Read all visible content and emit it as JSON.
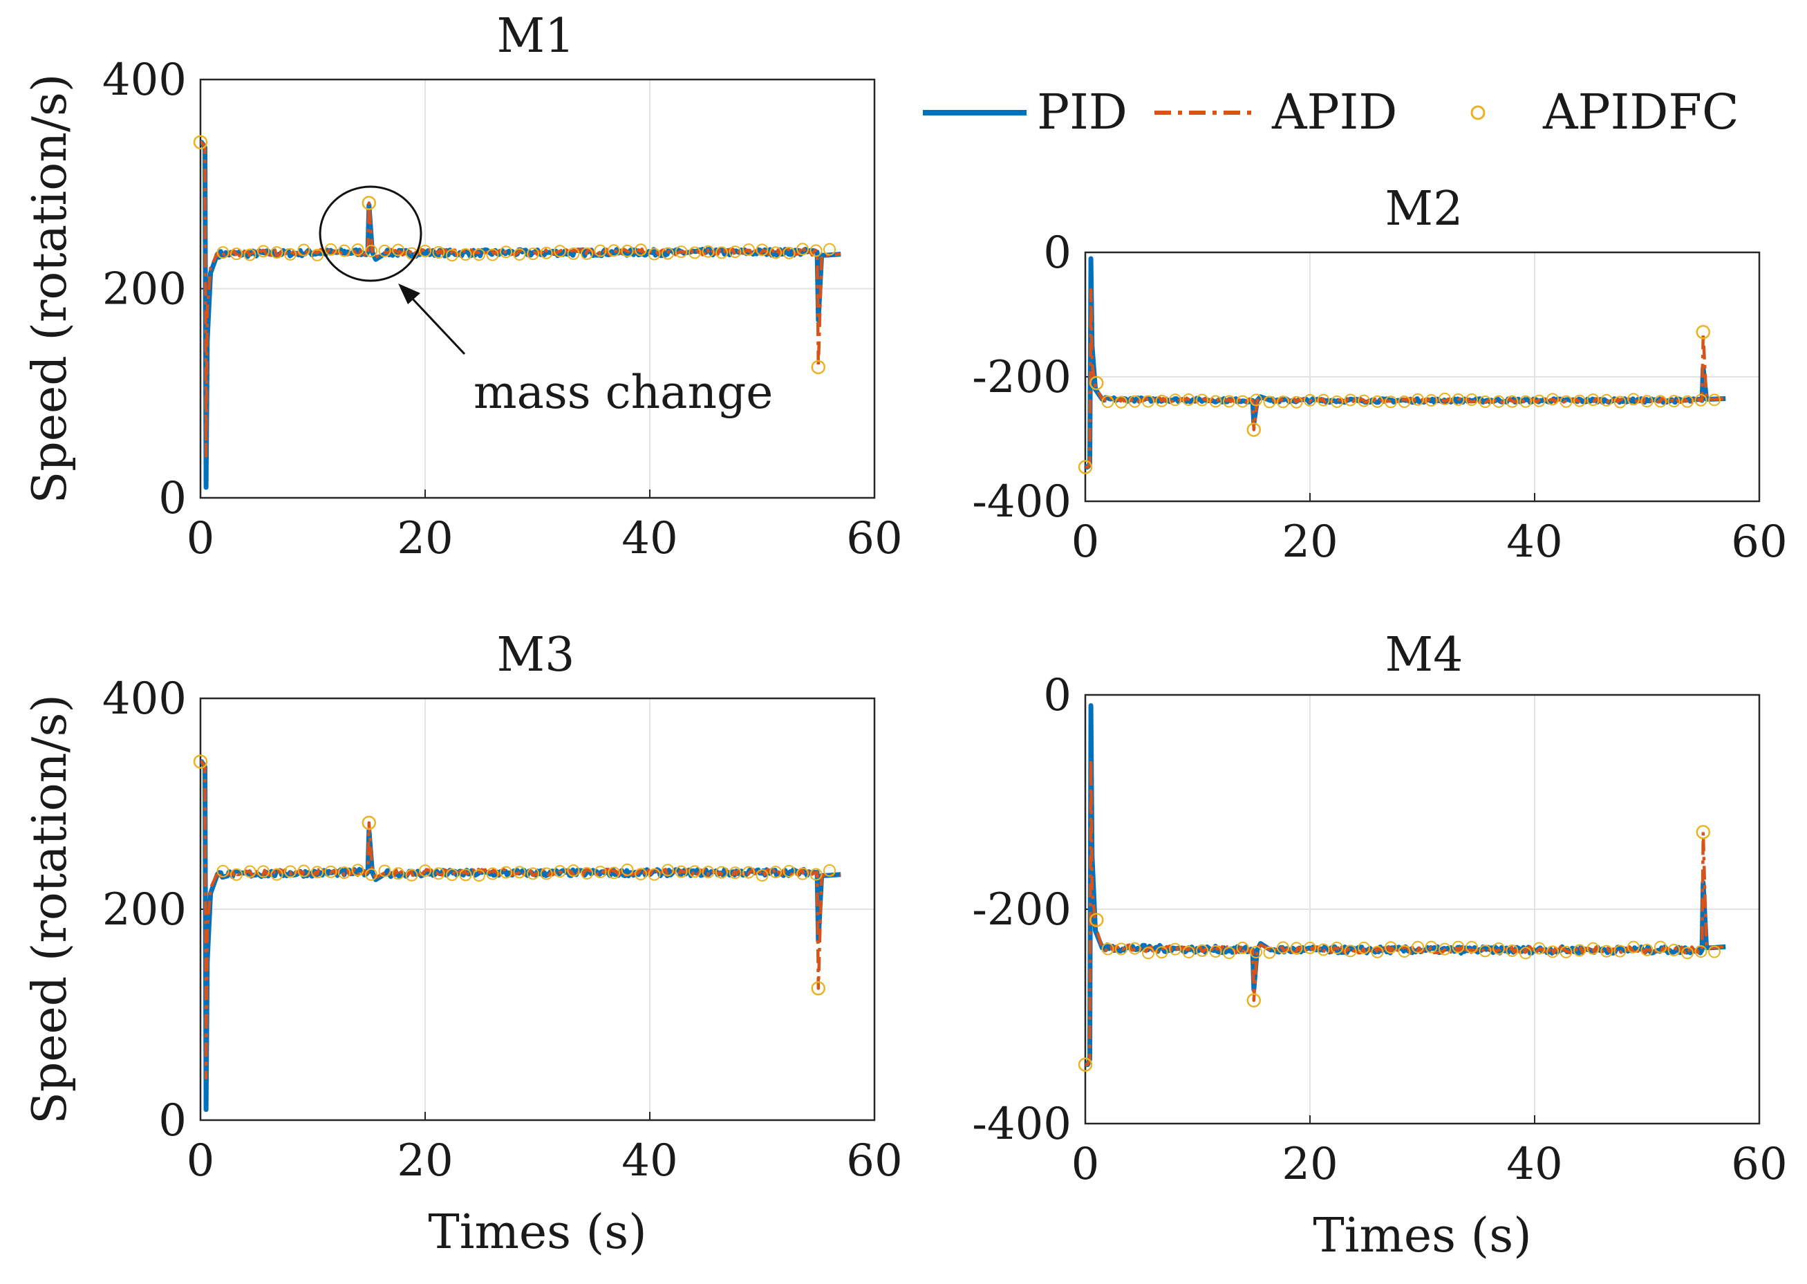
{
  "legend": [
    {
      "name": "PID",
      "color": "#0072BD",
      "style": "solid"
    },
    {
      "name": "APID",
      "color": "#D95319",
      "style": "dashdot"
    },
    {
      "name": "APIDFC",
      "color": "#EDB120",
      "style": "circle"
    }
  ],
  "annotation": {
    "text": "mass change",
    "panel": "M1",
    "x": 15,
    "y": 255
  },
  "chart_data": [
    {
      "type": "line",
      "title": "M1",
      "xlabel": "",
      "ylabel": "Speed (rotation/s)",
      "xlim": [
        0,
        60
      ],
      "ylim": [
        0,
        400
      ],
      "xticks": [
        0,
        20,
        40,
        60
      ],
      "yticks": [
        0,
        200,
        400
      ],
      "xtick_labels": [
        "0",
        "20",
        "40",
        "60"
      ],
      "ytick_labels": [
        "0",
        "200",
        "400"
      ],
      "steady": 235,
      "series": [
        {
          "name": "PID",
          "x": [
            0,
            0.1,
            0.4,
            0.5,
            0.6,
            0.9,
            1.5,
            14.9,
            15.0,
            15.3,
            15.6,
            16.5,
            54.9,
            55.0,
            55.3,
            55.7,
            57
          ],
          "y": [
            340,
            340,
            335,
            10,
            150,
            215,
            233,
            235,
            280,
            235,
            228,
            234,
            235,
            170,
            232,
            232,
            233
          ]
        },
        {
          "name": "APID",
          "x": [
            0,
            0.1,
            0.4,
            0.5,
            0.6,
            0.9,
            1.5,
            14.9,
            15.0,
            15.3,
            15.6,
            16.5,
            54.9,
            55.0,
            55.3,
            55.7,
            57
          ],
          "y": [
            340,
            340,
            335,
            40,
            180,
            220,
            234,
            235,
            282,
            236,
            230,
            235,
            235,
            125,
            232,
            232,
            233
          ]
        },
        {
          "name": "APIDFC",
          "x": [
            0,
            15.0,
            55.0
          ],
          "y": [
            340,
            282,
            125
          ]
        }
      ]
    },
    {
      "type": "line",
      "title": "M2",
      "xlabel": "",
      "ylabel": "",
      "xlim": [
        0,
        60
      ],
      "ylim": [
        -400,
        0
      ],
      "xticks": [
        0,
        20,
        40,
        60
      ],
      "yticks": [
        -400,
        -200,
        0
      ],
      "xtick_labels": [
        "0",
        "20",
        "40",
        "60"
      ],
      "ytick_labels": [
        "-400",
        "-200",
        "0"
      ],
      "steady": -238,
      "series": [
        {
          "name": "PID",
          "x": [
            0,
            0.2,
            0.4,
            0.5,
            0.6,
            0.9,
            1.5,
            14.9,
            15.0,
            15.3,
            15.6,
            16.5,
            54.9,
            55.0,
            55.3,
            55.7,
            57
          ],
          "y": [
            -345,
            -345,
            -340,
            -10,
            -150,
            -220,
            -236,
            -238,
            -275,
            -238,
            -232,
            -238,
            -238,
            -185,
            -236,
            -236,
            -235
          ]
        },
        {
          "name": "APID",
          "x": [
            0,
            0.2,
            0.4,
            0.5,
            0.6,
            0.9,
            1.5,
            14.9,
            15.0,
            15.3,
            15.6,
            16.5,
            54.9,
            55.0,
            55.3,
            55.7,
            57
          ],
          "y": [
            -345,
            -345,
            -340,
            -60,
            -180,
            -215,
            -236,
            -238,
            -285,
            -238,
            -233,
            -238,
            -238,
            -130,
            -236,
            -236,
            -235
          ]
        },
        {
          "name": "APIDFC",
          "x": [
            0,
            1.0,
            15.0,
            55.0
          ],
          "y": [
            -345,
            -210,
            -285,
            -128
          ]
        }
      ]
    },
    {
      "type": "line",
      "title": "M3",
      "xlabel": "Times (s)",
      "ylabel": "Speed (rotation/s)",
      "xlim": [
        0,
        60
      ],
      "ylim": [
        0,
        400
      ],
      "xticks": [
        0,
        20,
        40,
        60
      ],
      "yticks": [
        0,
        200,
        400
      ],
      "xtick_labels": [
        "0",
        "20",
        "40",
        "60"
      ],
      "ytick_labels": [
        "0",
        "200",
        "400"
      ],
      "steady": 235,
      "series": [
        {
          "name": "PID",
          "x": [
            0,
            0.1,
            0.4,
            0.5,
            0.6,
            0.9,
            1.5,
            14.9,
            15.0,
            15.3,
            15.6,
            16.5,
            54.9,
            55.0,
            55.3,
            55.7,
            57
          ],
          "y": [
            340,
            340,
            335,
            10,
            150,
            215,
            233,
            235,
            275,
            235,
            228,
            234,
            235,
            170,
            232,
            232,
            233
          ]
        },
        {
          "name": "APID",
          "x": [
            0,
            0.1,
            0.4,
            0.5,
            0.6,
            0.9,
            1.5,
            14.9,
            15.0,
            15.3,
            15.6,
            16.5,
            54.9,
            55.0,
            55.3,
            55.7,
            57
          ],
          "y": [
            340,
            340,
            335,
            40,
            180,
            220,
            234,
            235,
            282,
            236,
            230,
            235,
            235,
            125,
            232,
            232,
            233
          ]
        },
        {
          "name": "APIDFC",
          "x": [
            0,
            15.0,
            55.0
          ],
          "y": [
            340,
            282,
            125
          ]
        }
      ]
    },
    {
      "type": "line",
      "title": "M4",
      "xlabel": "Times (s)",
      "ylabel": "",
      "xlim": [
        0,
        60
      ],
      "ylim": [
        -400,
        0
      ],
      "xticks": [
        0,
        20,
        40,
        60
      ],
      "yticks": [
        -400,
        -200,
        0
      ],
      "xtick_labels": [
        "0",
        "20",
        "40",
        "60"
      ],
      "ytick_labels": [
        "-400",
        "-200",
        "0"
      ],
      "steady": -238,
      "series": [
        {
          "name": "PID",
          "x": [
            0,
            0.2,
            0.4,
            0.5,
            0.6,
            0.9,
            1.5,
            14.9,
            15.0,
            15.3,
            15.6,
            16.5,
            54.9,
            55.0,
            55.3,
            55.7,
            57
          ],
          "y": [
            -345,
            -345,
            -340,
            -10,
            -150,
            -220,
            -236,
            -238,
            -275,
            -238,
            -232,
            -238,
            -238,
            -175,
            -236,
            -236,
            -235
          ]
        },
        {
          "name": "APID",
          "x": [
            0,
            0.2,
            0.4,
            0.5,
            0.6,
            0.9,
            1.5,
            14.9,
            15.0,
            15.3,
            15.6,
            16.5,
            54.9,
            55.0,
            55.3,
            55.7,
            57
          ],
          "y": [
            -345,
            -345,
            -340,
            -60,
            -180,
            -215,
            -236,
            -238,
            -285,
            -238,
            -233,
            -238,
            -238,
            -128,
            -236,
            -236,
            -235
          ]
        },
        {
          "name": "APIDFC",
          "x": [
            0,
            1.0,
            15.0,
            55.0
          ],
          "y": [
            -345,
            -210,
            -285,
            -128
          ]
        }
      ]
    }
  ]
}
